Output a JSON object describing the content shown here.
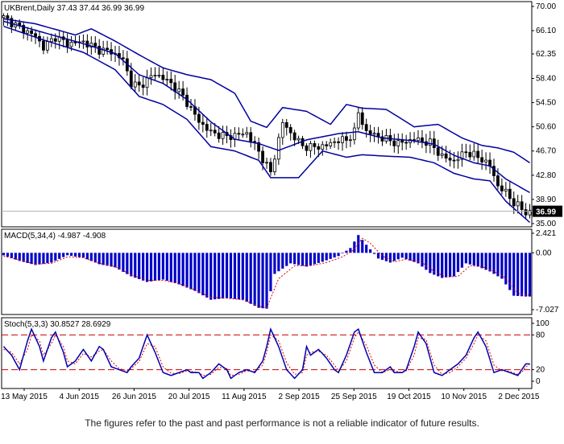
{
  "chart_data": {
    "type": "candlestick",
    "symbol_header": "UKBrent,Daily  37.43 37.44 36.99 36.99",
    "last_price_label": "36.99",
    "x_tick_labels": [
      "13 May 2015",
      "4 Jun 2015",
      "26 Jun 2015",
      "20 Jul 2015",
      "11 Aug 2015",
      "2 Sep 2015",
      "25 Sep 2015",
      "19 Oct 2015",
      "10 Nov 2015",
      "2 Dec 2015"
    ],
    "price_axis": {
      "ylim": [
        35.0,
        70.0
      ],
      "tick_labels": [
        "70.00",
        "66.10",
        "62.35",
        "58.40",
        "54.50",
        "50.60",
        "46.70",
        "42.80",
        "38.90",
        "35.00"
      ]
    },
    "price_anchors": [
      [
        0,
        68.2
      ],
      [
        4,
        66.6
      ],
      [
        8,
        65.2
      ],
      [
        10,
        63.4
      ],
      [
        13,
        65.1
      ],
      [
        16,
        64.0
      ],
      [
        20,
        64.3
      ],
      [
        24,
        63.0
      ],
      [
        27,
        62.7
      ],
      [
        30,
        61.4
      ],
      [
        32,
        57.6
      ],
      [
        34,
        57.1
      ],
      [
        38,
        59.2
      ],
      [
        42,
        57.6
      ],
      [
        45,
        55.5
      ],
      [
        49,
        51.5
      ],
      [
        52,
        49.7
      ],
      [
        56,
        49.0
      ],
      [
        61,
        49.6
      ],
      [
        64,
        46.6
      ],
      [
        67,
        43.2
      ],
      [
        70,
        51.3
      ],
      [
        72,
        49.6
      ],
      [
        75,
        47.5
      ],
      [
        78,
        47.3
      ],
      [
        81,
        47.6
      ],
      [
        84,
        48.5
      ],
      [
        86,
        48.4
      ],
      [
        88,
        49.9
      ],
      [
        89,
        52.8
      ],
      [
        91,
        49.8
      ],
      [
        95,
        48.8
      ],
      [
        99,
        47.9
      ],
      [
        103,
        48.6
      ],
      [
        107,
        48.0
      ],
      [
        110,
        45.8
      ],
      [
        113,
        45.1
      ],
      [
        116,
        46.6
      ],
      [
        120,
        45.4
      ],
      [
        122,
        44.3
      ],
      [
        124,
        41.1
      ],
      [
        126,
        40.0
      ],
      [
        128,
        38.4
      ],
      [
        131,
        36.8
      ]
    ],
    "bollinger_upper_anchors": [
      [
        0,
        68.0
      ],
      [
        8,
        67.2
      ],
      [
        18,
        65.4
      ],
      [
        22,
        66.4
      ],
      [
        28,
        64.4
      ],
      [
        34,
        62.2
      ],
      [
        40,
        60.1
      ],
      [
        46,
        59.0
      ],
      [
        52,
        58.2
      ],
      [
        58,
        56.0
      ],
      [
        62,
        51.5
      ],
      [
        66,
        50.5
      ],
      [
        70,
        53.7
      ],
      [
        76,
        53.1
      ],
      [
        82,
        51.0
      ],
      [
        86,
        54.2
      ],
      [
        90,
        53.6
      ],
      [
        96,
        53.4
      ],
      [
        103,
        50.6
      ],
      [
        109,
        51.0
      ],
      [
        115,
        48.8
      ],
      [
        120,
        47.6
      ],
      [
        124,
        47.2
      ],
      [
        128,
        46.5
      ],
      [
        132,
        44.8
      ]
    ],
    "bollinger_middle_anchors": [
      [
        0,
        67.6
      ],
      [
        10,
        65.8
      ],
      [
        20,
        64.0
      ],
      [
        28,
        62.4
      ],
      [
        34,
        59.0
      ],
      [
        40,
        57.6
      ],
      [
        46,
        55.0
      ],
      [
        52,
        51.4
      ],
      [
        58,
        48.6
      ],
      [
        64,
        47.9
      ],
      [
        69,
        46.8
      ],
      [
        76,
        48.5
      ],
      [
        84,
        49.5
      ],
      [
        89,
        49.8
      ],
      [
        95,
        48.8
      ],
      [
        102,
        48.4
      ],
      [
        108,
        47.8
      ],
      [
        113,
        46.0
      ],
      [
        118,
        44.8
      ],
      [
        122,
        44.3
      ],
      [
        126,
        42.2
      ],
      [
        132,
        40.0
      ]
    ],
    "bollinger_lower_anchors": [
      [
        0,
        66.8
      ],
      [
        10,
        64.6
      ],
      [
        20,
        62.6
      ],
      [
        28,
        59.8
      ],
      [
        34,
        55.5
      ],
      [
        40,
        54.2
      ],
      [
        46,
        51.8
      ],
      [
        52,
        47.4
      ],
      [
        58,
        46.7
      ],
      [
        64,
        45.2
      ],
      [
        67,
        42.4
      ],
      [
        74,
        42.4
      ],
      [
        80,
        46.7
      ],
      [
        86,
        45.7
      ],
      [
        90,
        46.1
      ],
      [
        95,
        45.9
      ],
      [
        102,
        45.7
      ],
      [
        108,
        44.8
      ],
      [
        113,
        43.1
      ],
      [
        118,
        42.2
      ],
      [
        122,
        41.9
      ],
      [
        126,
        38.6
      ],
      [
        132,
        35.2
      ]
    ],
    "macd": {
      "header": "MACD(5,34,4) -4.987 -4.908",
      "ylim": [
        -7.027,
        2.421
      ],
      "tick_labels": [
        "2.421",
        "0.00",
        "-7.027"
      ],
      "hist_anchors": [
        [
          0,
          -0.3
        ],
        [
          4,
          -1.0
        ],
        [
          8,
          -1.5
        ],
        [
          12,
          -1.2
        ],
        [
          16,
          -0.3
        ],
        [
          20,
          -0.6
        ],
        [
          24,
          -1.4
        ],
        [
          28,
          -1.8
        ],
        [
          32,
          -2.9
        ],
        [
          36,
          -3.6
        ],
        [
          40,
          -3.3
        ],
        [
          44,
          -3.9
        ],
        [
          48,
          -4.7
        ],
        [
          52,
          -5.8
        ],
        [
          56,
          -5.6
        ],
        [
          60,
          -5.8
        ],
        [
          64,
          -6.8
        ],
        [
          66,
          -6.9
        ],
        [
          68,
          -2.6
        ],
        [
          72,
          -1.3
        ],
        [
          76,
          -1.7
        ],
        [
          80,
          -1.1
        ],
        [
          84,
          -0.4
        ],
        [
          87,
          0.6
        ],
        [
          89,
          2.2
        ],
        [
          91,
          1.0
        ],
        [
          94,
          -0.7
        ],
        [
          97,
          -1.2
        ],
        [
          100,
          -0.6
        ],
        [
          104,
          -1.3
        ],
        [
          107,
          -2.5
        ],
        [
          110,
          -3.1
        ],
        [
          113,
          -2.9
        ],
        [
          116,
          -1.3
        ],
        [
          119,
          -1.7
        ],
        [
          122,
          -2.3
        ],
        [
          125,
          -3.2
        ],
        [
          128,
          -5.3
        ],
        [
          131,
          -5.4
        ]
      ],
      "signal_anchors": [
        [
          0,
          -0.4
        ],
        [
          4,
          -0.9
        ],
        [
          8,
          -1.4
        ],
        [
          12,
          -1.3
        ],
        [
          16,
          -0.5
        ],
        [
          20,
          -0.6
        ],
        [
          24,
          -1.3
        ],
        [
          28,
          -1.7
        ],
        [
          32,
          -2.7
        ],
        [
          36,
          -3.4
        ],
        [
          40,
          -3.4
        ],
        [
          44,
          -3.8
        ],
        [
          48,
          -4.6
        ],
        [
          52,
          -5.5
        ],
        [
          56,
          -5.6
        ],
        [
          60,
          -5.8
        ],
        [
          64,
          -6.6
        ],
        [
          66,
          -6.8
        ],
        [
          69,
          -3.2
        ],
        [
          73,
          -1.6
        ],
        [
          77,
          -1.6
        ],
        [
          81,
          -1.2
        ],
        [
          85,
          -0.5
        ],
        [
          88,
          0.4
        ],
        [
          90,
          1.8
        ],
        [
          92,
          1.2
        ],
        [
          95,
          -0.4
        ],
        [
          98,
          -1.1
        ],
        [
          101,
          -0.8
        ],
        [
          105,
          -1.2
        ],
        [
          108,
          -2.3
        ],
        [
          111,
          -3.0
        ],
        [
          114,
          -2.9
        ],
        [
          117,
          -1.6
        ],
        [
          120,
          -1.7
        ],
        [
          123,
          -2.3
        ],
        [
          126,
          -3.1
        ],
        [
          129,
          -5.0
        ],
        [
          131,
          -5.2
        ]
      ]
    },
    "stochastic": {
      "header": "Stoch(5,3,3) 30.8527 28.6929",
      "ylim": [
        0,
        100
      ],
      "tick_labels": [
        "100",
        "80",
        "20",
        "0"
      ],
      "levels": [
        80,
        20
      ],
      "main_anchors": [
        [
          0,
          60
        ],
        [
          2,
          45
        ],
        [
          4,
          20
        ],
        [
          6,
          70
        ],
        [
          7,
          90
        ],
        [
          9,
          60
        ],
        [
          10,
          35
        ],
        [
          12,
          75
        ],
        [
          13,
          85
        ],
        [
          15,
          50
        ],
        [
          16,
          25
        ],
        [
          18,
          35
        ],
        [
          20,
          55
        ],
        [
          22,
          35
        ],
        [
          24,
          60
        ],
        [
          25,
          55
        ],
        [
          27,
          25
        ],
        [
          29,
          20
        ],
        [
          31,
          15
        ],
        [
          32,
          25
        ],
        [
          34,
          40
        ],
        [
          36,
          80
        ],
        [
          38,
          50
        ],
        [
          40,
          15
        ],
        [
          42,
          10
        ],
        [
          44,
          15
        ],
        [
          46,
          20
        ],
        [
          47,
          15
        ],
        [
          49,
          15
        ],
        [
          50,
          5
        ],
        [
          52,
          15
        ],
        [
          54,
          30
        ],
        [
          56,
          20
        ],
        [
          57,
          5
        ],
        [
          59,
          15
        ],
        [
          61,
          20
        ],
        [
          63,
          15
        ],
        [
          65,
          35
        ],
        [
          66,
          60
        ],
        [
          67,
          90
        ],
        [
          69,
          60
        ],
        [
          71,
          20
        ],
        [
          73,
          5
        ],
        [
          75,
          20
        ],
        [
          76,
          60
        ],
        [
          77,
          45
        ],
        [
          79,
          55
        ],
        [
          81,
          40
        ],
        [
          83,
          20
        ],
        [
          84,
          15
        ],
        [
          86,
          45
        ],
        [
          88,
          85
        ],
        [
          89,
          90
        ],
        [
          91,
          50
        ],
        [
          93,
          15
        ],
        [
          95,
          15
        ],
        [
          97,
          25
        ],
        [
          98,
          15
        ],
        [
          100,
          15
        ],
        [
          101,
          20
        ],
        [
          103,
          60
        ],
        [
          104,
          85
        ],
        [
          106,
          65
        ],
        [
          108,
          15
        ],
        [
          110,
          10
        ],
        [
          112,
          20
        ],
        [
          114,
          30
        ],
        [
          116,
          45
        ],
        [
          118,
          75
        ],
        [
          119,
          85
        ],
        [
          121,
          60
        ],
        [
          123,
          15
        ],
        [
          125,
          20
        ],
        [
          127,
          15
        ],
        [
          129,
          10
        ],
        [
          130,
          20
        ],
        [
          131,
          30
        ],
        [
          132,
          30
        ]
      ],
      "signal_anchors": [
        [
          0,
          55
        ],
        [
          2,
          50
        ],
        [
          4,
          30
        ],
        [
          6,
          55
        ],
        [
          7,
          80
        ],
        [
          9,
          70
        ],
        [
          10,
          45
        ],
        [
          12,
          65
        ],
        [
          13,
          80
        ],
        [
          15,
          60
        ],
        [
          16,
          35
        ],
        [
          18,
          30
        ],
        [
          20,
          48
        ],
        [
          22,
          42
        ],
        [
          24,
          52
        ],
        [
          25,
          55
        ],
        [
          27,
          35
        ],
        [
          29,
          22
        ],
        [
          31,
          18
        ],
        [
          32,
          22
        ],
        [
          34,
          34
        ],
        [
          36,
          65
        ],
        [
          38,
          60
        ],
        [
          40,
          25
        ],
        [
          42,
          14
        ],
        [
          44,
          13
        ],
        [
          46,
          18
        ],
        [
          47,
          17
        ],
        [
          49,
          15
        ],
        [
          50,
          10
        ],
        [
          52,
          12
        ],
        [
          54,
          24
        ],
        [
          56,
          22
        ],
        [
          57,
          10
        ],
        [
          59,
          12
        ],
        [
          61,
          18
        ],
        [
          63,
          17
        ],
        [
          65,
          28
        ],
        [
          66,
          50
        ],
        [
          67,
          80
        ],
        [
          69,
          70
        ],
        [
          71,
          32
        ],
        [
          73,
          12
        ],
        [
          75,
          15
        ],
        [
          76,
          45
        ],
        [
          77,
          50
        ],
        [
          79,
          52
        ],
        [
          81,
          45
        ],
        [
          83,
          28
        ],
        [
          84,
          18
        ],
        [
          86,
          35
        ],
        [
          88,
          75
        ],
        [
          89,
          85
        ],
        [
          91,
          62
        ],
        [
          93,
          28
        ],
        [
          95,
          15
        ],
        [
          97,
          20
        ],
        [
          98,
          18
        ],
        [
          100,
          15
        ],
        [
          101,
          18
        ],
        [
          103,
          45
        ],
        [
          104,
          75
        ],
        [
          106,
          72
        ],
        [
          108,
          28
        ],
        [
          110,
          12
        ],
        [
          112,
          15
        ],
        [
          114,
          25
        ],
        [
          116,
          40
        ],
        [
          118,
          65
        ],
        [
          119,
          80
        ],
        [
          121,
          70
        ],
        [
          123,
          28
        ],
        [
          125,
          18
        ],
        [
          127,
          17
        ],
        [
          129,
          12
        ],
        [
          130,
          15
        ],
        [
          131,
          25
        ],
        [
          132,
          29
        ]
      ]
    }
  },
  "footer": {
    "disclaimer": "The figures refer to the past and past performance is not a reliable indicator of future results."
  },
  "colors": {
    "candle": "#000000",
    "band": "#0000a0",
    "macd_hist": "#0000c8",
    "macd_signal": "#e00000",
    "stoch_main": "#0000b0",
    "stoch_signal": "#e00000",
    "level_line": "#cc0000"
  }
}
